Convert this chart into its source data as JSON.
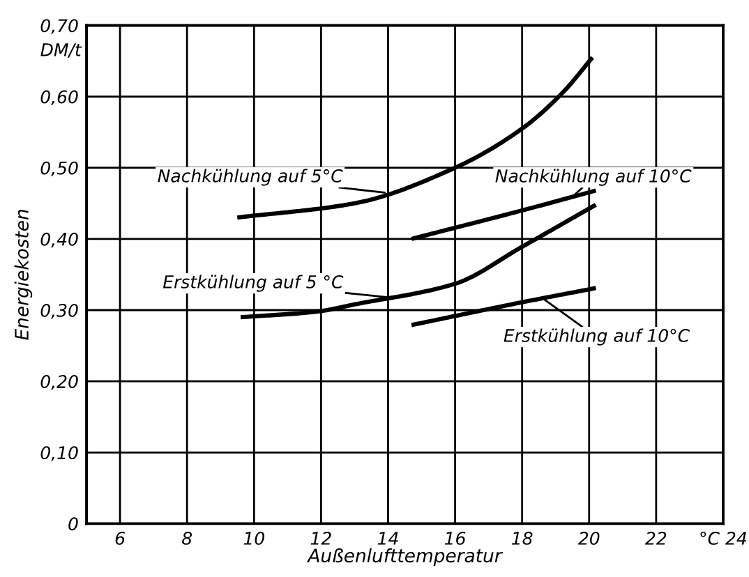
{
  "chart_data": {
    "type": "line",
    "xlabel": "Außenlufttemperatur",
    "ylabel": "Energiekosten",
    "xlim": [
      5,
      24
    ],
    "ylim": [
      0,
      0.7
    ],
    "xticks": [
      6,
      8,
      10,
      12,
      14,
      16,
      18,
      20,
      22,
      {
        "value": 24,
        "label": "°C 24"
      }
    ],
    "yticks": [
      0,
      {
        "value": 0.1,
        "label": "0,10"
      },
      {
        "value": 0.2,
        "label": "0,20"
      },
      {
        "value": 0.3,
        "label": "0,30"
      },
      {
        "value": 0.4,
        "label": "0,40"
      },
      {
        "value": 0.5,
        "label": "0,50"
      },
      {
        "value": 0.6,
        "label": "0,60"
      },
      {
        "value": 0.7,
        "label": "0,70"
      }
    ],
    "grid": true,
    "marker": "none",
    "line_style": "solid",
    "series": [
      {
        "color": "#000000",
        "x": [
          9.5,
          13.0,
          16.0,
          18.0,
          19.2,
          20.1
        ],
        "values": [
          0.43,
          0.45,
          0.5,
          0.555,
          0.605,
          0.655
        ]
      },
      {
        "color": "#000000",
        "x": [
          14.7,
          18.0,
          20.2
        ],
        "values": [
          0.4,
          0.44,
          0.468
        ]
      },
      {
        "color": "#000000",
        "x": [
          9.6,
          11.9,
          13.0,
          16.0,
          18.0,
          20.2
        ],
        "values": [
          0.29,
          0.298,
          0.308,
          0.337,
          0.389,
          0.448
        ]
      },
      {
        "color": "#000000",
        "x": [
          14.7,
          18.0,
          20.2
        ],
        "values": [
          0.279,
          0.311,
          0.331
        ]
      }
    ],
    "annotations": [
      "DM/t",
      {
        "text": "Nachkühlung auf 5°C",
        "x": 13.9,
        "y": 0.465
      },
      {
        "text": "Nachkühlung auf 10°C",
        "x": 19.5,
        "y": 0.459
      },
      {
        "text": "Erstkühlung auf 5 °C",
        "x": 14.0,
        "y": 0.318
      },
      {
        "text": "Erstkühlung auf 10°C",
        "x": 18.6,
        "y": 0.317
      }
    ]
  }
}
